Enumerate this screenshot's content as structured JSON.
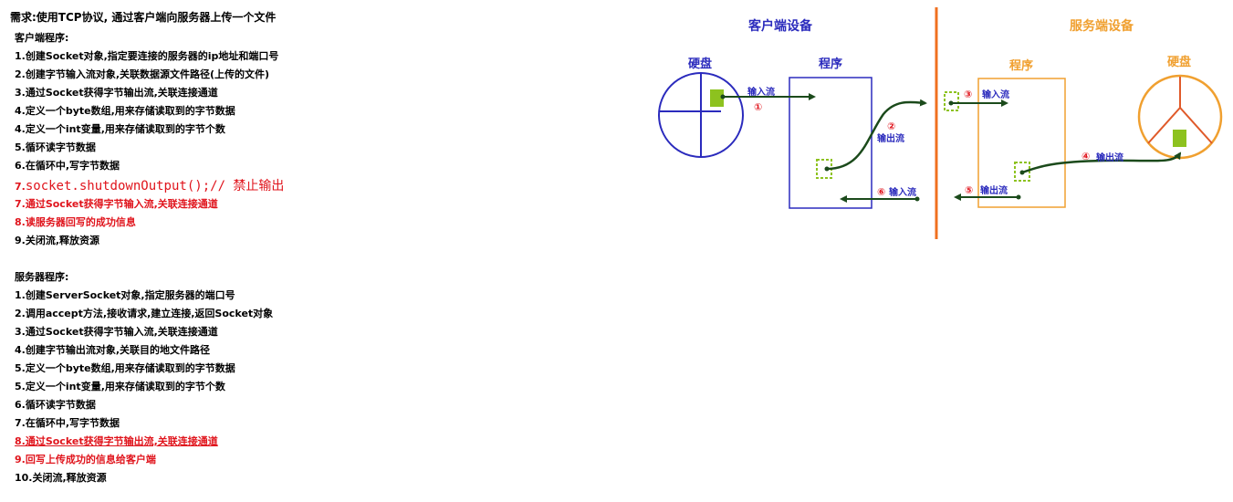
{
  "title": "需求:使用TCP协议, 通过客户端向服务器上传一个文件",
  "client": {
    "heading": "客户端程序:",
    "steps": [
      "1.创建Socket对象,指定要连接的服务器的ip地址和端口号",
      "2.创建字节输入流对象,关联数据源文件路径(上传的文件)",
      "3.通过Socket获得字节输出流,关联连接通道",
      "4.定义一个byte数组,用来存储读取到的字节数据",
      "4.定义一个int变量,用来存储读取到的字节个数",
      "5.循环读字节数据",
      "6.在循环中,写字节数据"
    ],
    "code_num": "7.",
    "code": "socket.shutdownOutput();",
    "code_comment": "// 禁止输出",
    "red_steps": [
      "7.通过Socket获得字节输入流,关联连接通道",
      "8.读服务器回写的成功信息"
    ],
    "final_step": "9.关闭流,释放资源"
  },
  "server": {
    "heading": "服务器程序:",
    "steps": [
      "1.创建ServerSocket对象,指定服务器的端口号",
      "2.调用accept方法,接收请求,建立连接,返回Socket对象",
      "3.通过Socket获得字节输入流,关联连接通道",
      "4.创建字节输出流对象,关联目的地文件路径",
      "5.定义一个byte数组,用来存储读取到的字节数据",
      "5.定义一个int变量,用来存储读取到的字节个数",
      "6.循环读字节数据",
      "7.在循环中,写字节数据"
    ],
    "red_steps": [
      "8.通过Socket获得字节输出流,关联连接通道",
      "9.回写上传成功的信息给客户端"
    ],
    "final_step": "10.关闭流,释放资源"
  },
  "diagram": {
    "client_device": "客户端设备",
    "server_device": "服务端设备",
    "client_disk": "硬盘",
    "client_program": "程序",
    "server_program": "程序",
    "server_disk": "硬盘",
    "flow1_label": "输入流",
    "flow1_num": "①",
    "flow2_num": "②",
    "flow2_label": "输出流",
    "flow3_num": "③",
    "flow3_label": "输入流",
    "flow4_num": "④",
    "flow4_label": "输出流",
    "flow5_num": "⑤",
    "flow5_label": "输出流",
    "flow6_num": "⑥",
    "flow6_label": "输入流",
    "colors": {
      "client_blue": "#2b2bbd",
      "server_orange": "#f0a030",
      "divider": "#f07020",
      "arrow_green": "#1b4a1b",
      "data_green": "#8dc21f",
      "step_red": "#e0141c"
    }
  }
}
